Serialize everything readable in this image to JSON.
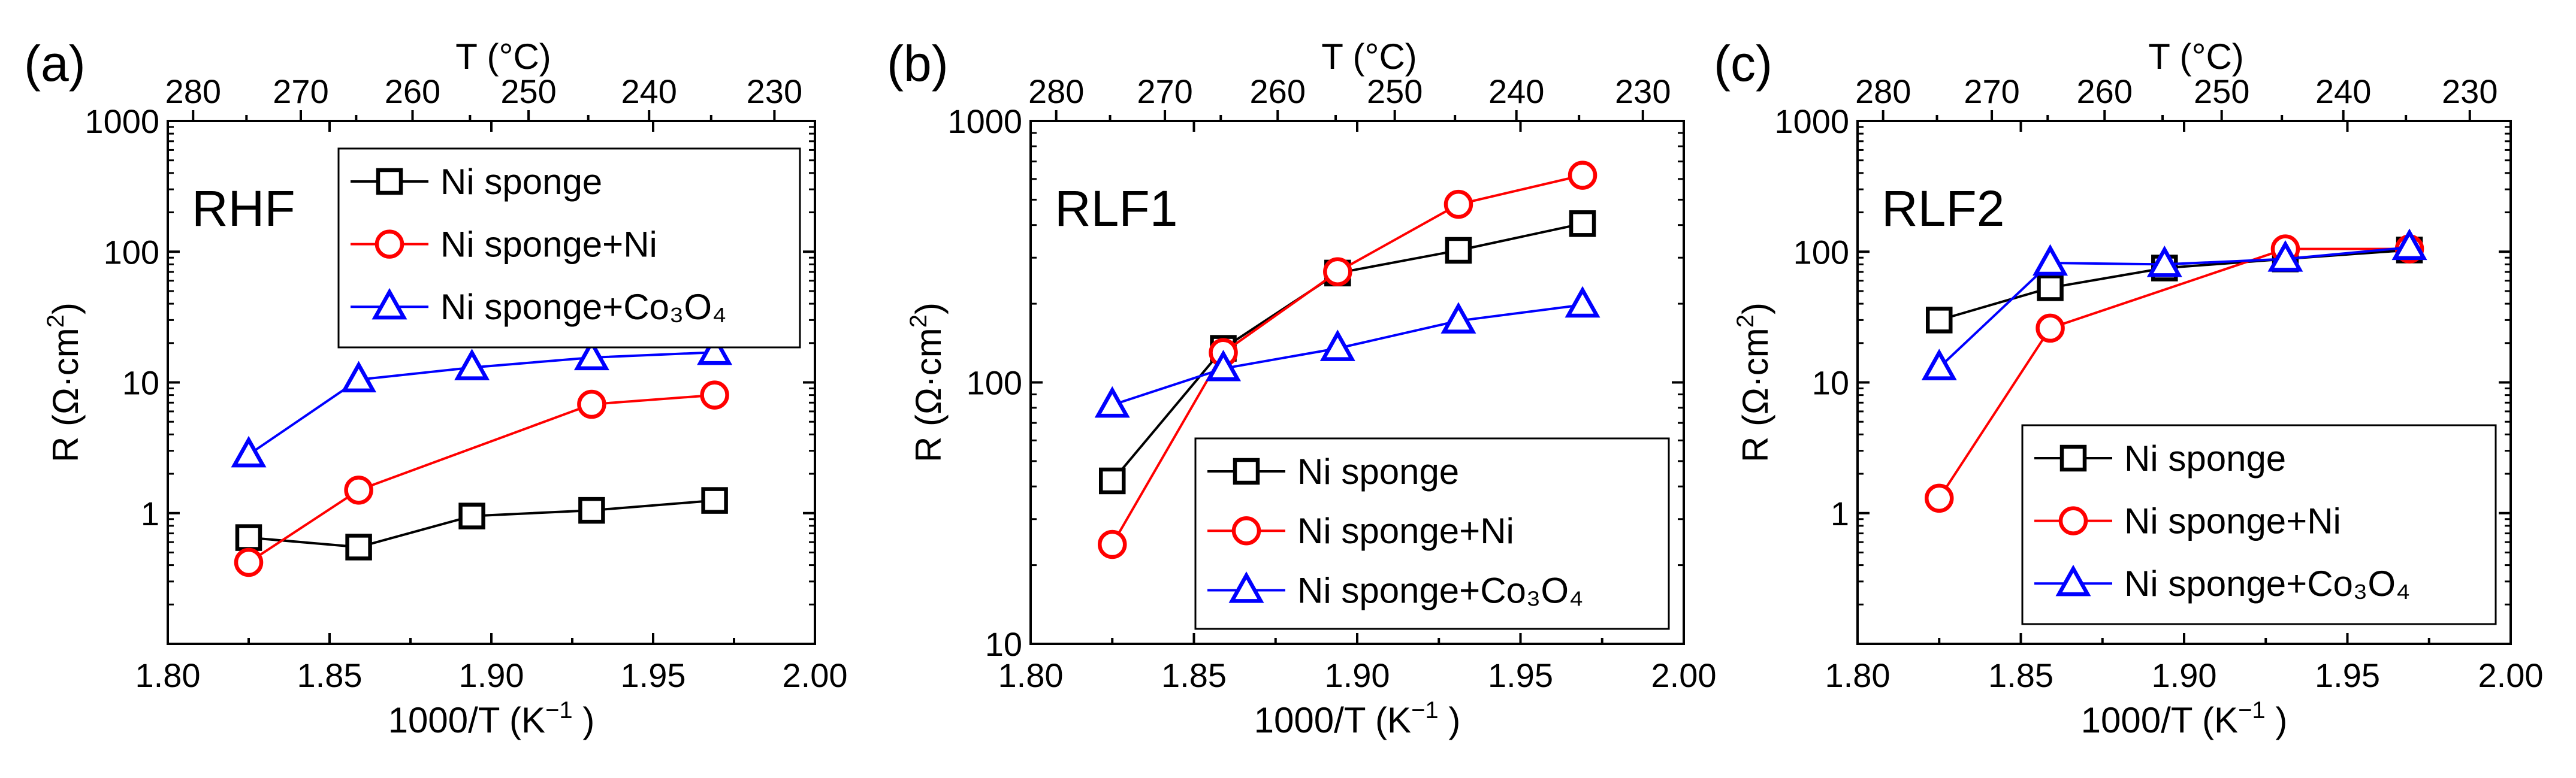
{
  "figure": {
    "panels": [
      {
        "panel_label": "(a)",
        "sample": "RHF",
        "top_axis_title": "T (°C)",
        "xlabel_main": "1000/T (K",
        "xlabel_sup": "−1",
        "xlabel_end": " )",
        "ylabel_main": "R (Ω·cm",
        "ylabel_sup": "2",
        "ylabel_end": ")"
      },
      {
        "panel_label": "(b)",
        "sample": "RLF1",
        "top_axis_title": "T (°C)",
        "xlabel_main": "1000/T (K",
        "xlabel_sup": "−1",
        "xlabel_end": " )",
        "ylabel_main": "R (Ω·cm",
        "ylabel_sup": "2",
        "ylabel_end": ")"
      },
      {
        "panel_label": "(c)",
        "sample": "RLF2",
        "top_axis_title": "T (°C)",
        "xlabel_main": "1000/T (K",
        "xlabel_sup": "−1",
        "xlabel_end": " )",
        "ylabel_main": "R (Ω·cm",
        "ylabel_sup": "2",
        "ylabel_end": ")"
      }
    ]
  },
  "chart_data": [
    {
      "type": "line",
      "title": "RHF",
      "xlabel": "1000/T (K−1 )",
      "ylabel": "R (Ω·cm2)",
      "xlim": [
        1.8,
        2.0
      ],
      "ylim": [
        0.1,
        1000
      ],
      "yscale": "log",
      "xticks": [
        "1.80",
        "1.85",
        "1.90",
        "1.95",
        "2.00"
      ],
      "yticks": [
        "1",
        "10",
        "100",
        "1000"
      ],
      "top_axis": {
        "label": "T (°C)",
        "ticks": [
          280,
          270,
          260,
          250,
          240,
          230
        ]
      },
      "legend_position": "top-right",
      "series": [
        {
          "name": "Ni sponge",
          "marker": "square",
          "color": "#000000",
          "x": [
            1.825,
            1.859,
            1.894,
            1.931,
            1.969
          ],
          "values": [
            0.65,
            0.55,
            0.95,
            1.05,
            1.25
          ]
        },
        {
          "name": "Ni sponge+Ni",
          "marker": "circle",
          "color": "#ff0000",
          "x": [
            1.825,
            1.859,
            1.931,
            1.969
          ],
          "values": [
            0.42,
            1.5,
            6.8,
            8.0
          ]
        },
        {
          "name": "Ni sponge+Co₃O₄",
          "marker": "triangle",
          "color": "#0000ff",
          "x": [
            1.825,
            1.859,
            1.894,
            1.931,
            1.969
          ],
          "values": [
            2.8,
            10.5,
            13.0,
            15.5,
            17.0
          ]
        }
      ]
    },
    {
      "type": "line",
      "title": "RLF1",
      "xlabel": "1000/T (K−1 )",
      "ylabel": "R (Ω·cm2)",
      "xlim": [
        1.8,
        2.0
      ],
      "ylim": [
        10,
        1000
      ],
      "yscale": "log",
      "xticks": [
        "1.80",
        "1.85",
        "1.90",
        "1.95",
        "2.00"
      ],
      "yticks": [
        "10",
        "100",
        "1000"
      ],
      "top_axis": {
        "label": "T (°C)",
        "ticks": [
          280,
          270,
          260,
          250,
          240,
          230
        ]
      },
      "legend_position": "bottom-right",
      "series": [
        {
          "name": "Ni sponge",
          "marker": "square",
          "color": "#000000",
          "x": [
            1.825,
            1.859,
            1.894,
            1.931,
            1.969
          ],
          "values": [
            42,
            135,
            262,
            320,
            405
          ]
        },
        {
          "name": "Ni sponge+Ni",
          "marker": "circle",
          "color": "#ff0000",
          "x": [
            1.825,
            1.859,
            1.894,
            1.931,
            1.969
          ],
          "values": [
            24,
            130,
            265,
            480,
            620
          ]
        },
        {
          "name": "Ni sponge+Co₃O₄",
          "marker": "triangle",
          "color": "#0000ff",
          "x": [
            1.825,
            1.859,
            1.894,
            1.931,
            1.969
          ],
          "values": [
            82,
            113,
            135,
            172,
            198
          ]
        }
      ]
    },
    {
      "type": "line",
      "title": "RLF2",
      "xlabel": "1000/T (K−1 )",
      "ylabel": "R (Ω·cm2)",
      "xlim": [
        1.8,
        2.0
      ],
      "ylim": [
        0.1,
        1000
      ],
      "yscale": "log",
      "xticks": [
        "1.80",
        "1.85",
        "1.90",
        "1.95",
        "2.00"
      ],
      "yticks": [
        "1",
        "10",
        "100",
        "1000"
      ],
      "top_axis": {
        "label": "T (°C)",
        "ticks": [
          280,
          270,
          260,
          250,
          240,
          230
        ]
      },
      "legend_position": "bottom-right",
      "series": [
        {
          "name": "Ni sponge",
          "marker": "square",
          "color": "#000000",
          "x": [
            1.825,
            1.859,
            1.894,
            1.931,
            1.969
          ],
          "values": [
            30,
            53,
            75,
            88,
            103
          ]
        },
        {
          "name": "Ni sponge+Ni",
          "marker": "circle",
          "color": "#ff0000",
          "x": [
            1.825,
            1.859,
            1.931,
            1.969
          ],
          "values": [
            1.3,
            26,
            105,
            105
          ]
        },
        {
          "name": "Ni sponge+Co₃O₄",
          "marker": "triangle",
          "color": "#0000ff",
          "x": [
            1.825,
            1.859,
            1.894,
            1.931,
            1.969
          ],
          "values": [
            13,
            82,
            80,
            88,
            108
          ]
        }
      ]
    }
  ]
}
